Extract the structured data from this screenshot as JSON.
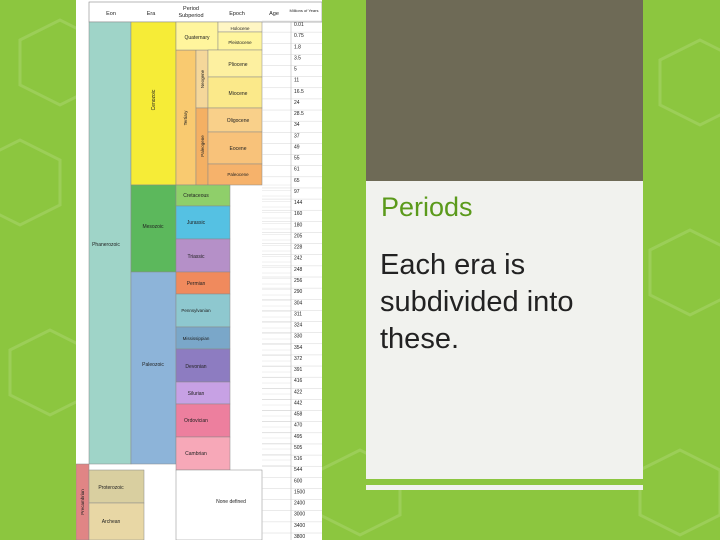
{
  "slide": {
    "title": "Periods",
    "body": "Each era is subdivided into these."
  },
  "colors": {
    "background": "#8cc63f",
    "accent": "#8cc63f",
    "title": "#5b9a1b",
    "panel": "#f1f2ee",
    "photo": "#6e6a56"
  },
  "timescale": {
    "headers": [
      "Eon",
      "Era",
      "Period",
      "Subperiod",
      "Epoch",
      "Age",
      "Millions of Years"
    ],
    "eons": [
      "Phanerozoic",
      "Proterozoic",
      "Archean",
      "Precambrian"
    ],
    "eras": [
      "Cenozoic",
      "Mesozoic",
      "Paleozoic"
    ],
    "periods": [
      "Quaternary",
      "Tertiary",
      "Cretaceous",
      "Jurassic",
      "Triassic",
      "Permian",
      "Pennsylvanian",
      "Mississippian",
      "Devonian",
      "Silurian",
      "Ordovician",
      "Cambrian"
    ],
    "subperiods": [
      "Neogene",
      "Paleogene"
    ],
    "epochs": [
      "Holocene",
      "Pleistocene",
      "Pliocene",
      "Miocene",
      "Oligocene",
      "Eocene",
      "Paleocene"
    ],
    "none_defined": "None defined",
    "ages": [
      "0.01",
      "0.75",
      "1.8",
      "3.5",
      "5",
      "11",
      "16.5",
      "24",
      "28.5",
      "34",
      "37",
      "49",
      "55",
      "61",
      "65",
      "97",
      "144",
      "160",
      "180",
      "205",
      "228",
      "242",
      "248",
      "256",
      "290",
      "304",
      "311",
      "324",
      "330",
      "354",
      "372",
      "391",
      "416",
      "422",
      "442",
      "458",
      "470",
      "495",
      "505",
      "516",
      "544",
      "600",
      "1500",
      "2400",
      "3000",
      "3400",
      "3800"
    ]
  }
}
